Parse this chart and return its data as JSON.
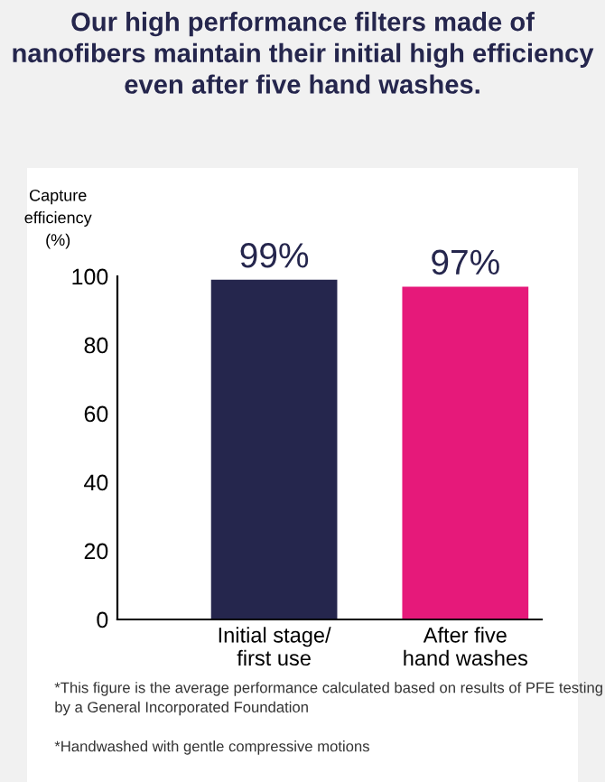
{
  "chart_data": {
    "type": "bar",
    "title": "Our high performance filters made of nanofibers maintain their initial high efficiency even after five hand washes.",
    "ylabel": "Capture\nefficiency\n(%)",
    "categories": [
      "Initial stage/\nfirst use",
      "After five\nhand washes"
    ],
    "values": [
      99,
      97
    ],
    "colors": [
      "#25264d",
      "#e6197a"
    ],
    "value_labels": [
      "99%",
      "97%"
    ],
    "ylim": [
      0,
      100
    ],
    "yticks": [
      0,
      20,
      40,
      60,
      80,
      100
    ],
    "annotations": [
      "*This figure is the average performance calculated based on results of PFE testing by a General Incorporated Foundation",
      "*Handwashed with gentle compressive motions"
    ]
  }
}
